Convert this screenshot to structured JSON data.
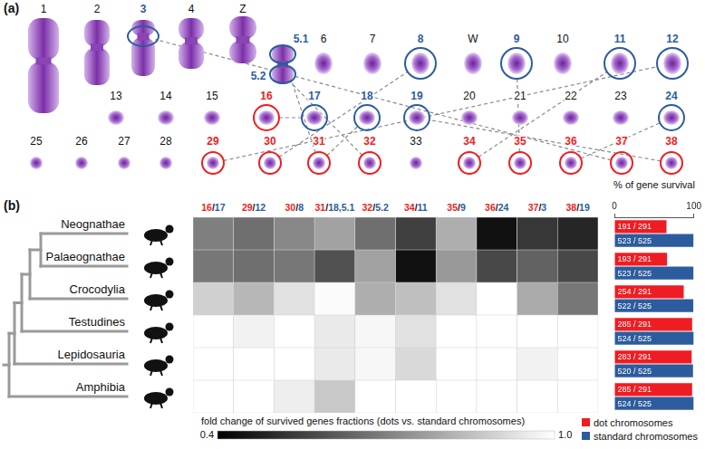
{
  "panel_labels": [
    "(a)",
    "(b)"
  ],
  "karyotype": {
    "rows": [
      [
        "1",
        "2",
        "3",
        "4",
        "Z",
        "5.1",
        "5.2",
        "6",
        "7",
        "8",
        "W",
        "9",
        "10",
        "11",
        "12"
      ],
      [
        "13",
        "14",
        "15",
        "16",
        "17",
        "18",
        "19",
        "20",
        "21",
        "22",
        "23",
        "24"
      ],
      [
        "25",
        "26",
        "27",
        "28",
        "29",
        "30",
        "31",
        "32",
        "33",
        "34",
        "35",
        "36",
        "37",
        "38"
      ]
    ]
  },
  "separator": "/",
  "chart_data": [
    {
      "type": "heatmap",
      "categories": [
        {
          "dot": "16",
          "standard": "17"
        },
        {
          "dot": "29",
          "standard": "12"
        },
        {
          "dot": "30",
          "standard": "8"
        },
        {
          "dot": "31",
          "standard": "18,5.1"
        },
        {
          "dot": "32",
          "standard": "5.2"
        },
        {
          "dot": "34",
          "standard": "11"
        },
        {
          "dot": "35",
          "standard": "9"
        },
        {
          "dot": "36",
          "standard": "24"
        },
        {
          "dot": "37",
          "standard": "3"
        },
        {
          "dot": "38",
          "standard": "19"
        }
      ],
      "rows": [
        {
          "name": "Neognathae",
          "values": [
            0.7,
            0.66,
            0.72,
            0.78,
            0.66,
            0.55,
            0.81,
            0.44,
            0.53,
            0.49
          ]
        },
        {
          "name": "Palaeognathae",
          "values": [
            0.68,
            0.66,
            0.68,
            0.59,
            0.78,
            0.44,
            0.76,
            0.57,
            0.63,
            0.57
          ]
        },
        {
          "name": "Crocodylia",
          "values": [
            0.89,
            0.83,
            0.93,
            0.99,
            0.81,
            0.85,
            0.93,
            1,
            0.8,
            0.68
          ]
        },
        {
          "name": "Testudines",
          "values": [
            1,
            0.97,
            1,
            0.95,
            0.98,
            0.93,
            1,
            1,
            1,
            1
          ]
        },
        {
          "name": "Lepidosauria",
          "values": [
            1,
            1,
            1,
            0.95,
            0.98,
            0.91,
            1,
            1,
            0.97,
            1
          ]
        },
        {
          "name": "Amphibia",
          "values": [
            1,
            1,
            0.96,
            0.87,
            1,
            1,
            1,
            1,
            1,
            1
          ]
        }
      ],
      "colorbar": {
        "title": "fold change of survived genes fractions (dots vs. standard chromosomes)",
        "range": [
          0.4,
          1
        ],
        "ticks": [
          0.4,
          {
            "value": 1,
            "label": "1.0"
          }
        ],
        "colors": [
          "#000000",
          "#ffffff"
        ]
      }
    },
    {
      "type": "bar",
      "orientation": "horizontal",
      "xlabel": "% of gene survival",
      "categories": [
        "Neognathae",
        "Palaeognathae",
        "Crocodylia",
        "Testudines",
        "Lepidosauria",
        "Amphibia"
      ],
      "series": [
        {
          "name": "dot chromosomes",
          "color": "#ee1d23",
          "values": [
            65.6,
            66.3,
            87.3,
            97.9,
            97.3,
            97.9
          ],
          "value_labels": [
            "191 / 291",
            "193 / 291",
            "254 / 291",
            "285 / 291",
            "283 / 291",
            "285 / 291"
          ]
        },
        {
          "name": "standard chromosomes",
          "color": "#2d5c9e",
          "values": [
            99.6,
            99.6,
            99.4,
            99.8,
            99.0,
            99.8
          ],
          "value_labels": [
            "523 / 525",
            "523 / 525",
            "522 / 525",
            "524 / 525",
            "520 / 525",
            "524 / 525"
          ]
        }
      ],
      "xlim": [
        0,
        100
      ],
      "xticks": [
        0,
        100
      ],
      "grid": false,
      "legend": "bottom",
      "data_labels": true,
      "tick_labels": "x"
    }
  ]
}
